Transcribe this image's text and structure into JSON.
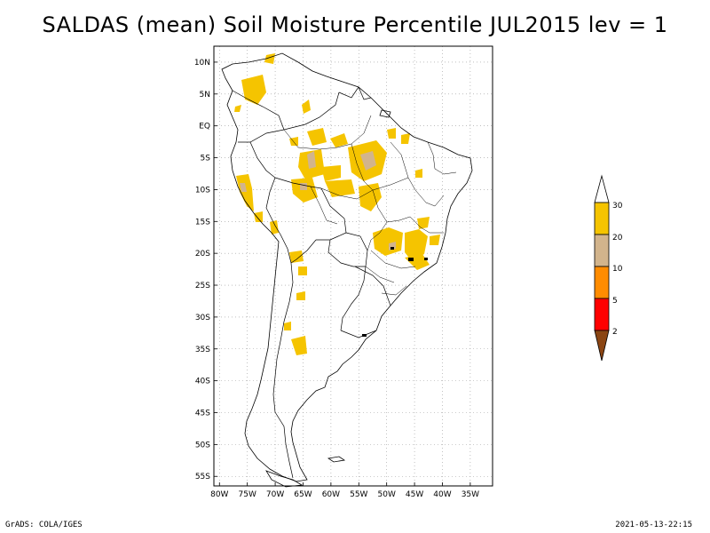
{
  "title": "SALDAS (mean) Soil Moisture Percentile JUL2015 lev = 1",
  "map": {
    "lat_ticks": [
      "10N",
      "5N",
      "EQ",
      "5S",
      "10S",
      "15S",
      "20S",
      "25S",
      "30S",
      "35S",
      "40S",
      "45S",
      "50S",
      "55S"
    ],
    "lon_ticks": [
      "80W",
      "75W",
      "70W",
      "65W",
      "60W",
      "55W",
      "50W",
      "45W",
      "40W",
      "35W"
    ],
    "lat_range": [
      12.5,
      -56.5
    ],
    "lon_range": [
      -81,
      -31
    ]
  },
  "legend": {
    "labels": [
      "30",
      "20",
      "10",
      "5",
      "2"
    ],
    "colors": {
      "above": "#ffffff",
      "c20_30": "#f5c400",
      "c10_20": "#d2b48c",
      "c5_10": "#ff8c00",
      "c2_5": "#ff0000",
      "below": "#8b4513"
    }
  },
  "footer": {
    "left": "GrADS: COLA/IGES",
    "right": "2021-05-13-22:15"
  }
}
